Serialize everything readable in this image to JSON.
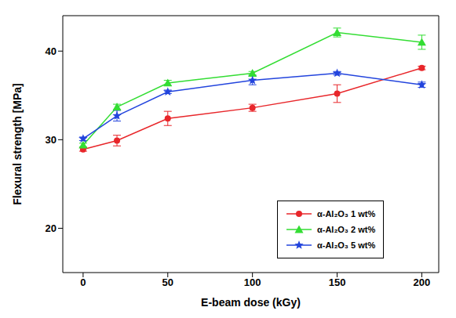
{
  "chart_data": {
    "type": "line",
    "x_label": "E-beam dose (kGy)",
    "y_label": "Flexural strength [MPa]",
    "xlim": [
      -12,
      210
    ],
    "xticks": [
      0,
      50,
      100,
      150,
      200
    ],
    "ylim": [
      15,
      44
    ],
    "yticks": [
      20,
      30,
      40
    ],
    "grid": false,
    "legend": "lower right",
    "x": [
      0,
      20,
      50,
      100,
      150,
      200
    ],
    "series": [
      {
        "name": "α-Al₂O₃ 1 wt%",
        "color": "#e8262a",
        "marker": "circle",
        "values": [
          28.9,
          29.9,
          32.4,
          33.6,
          35.2,
          38.1
        ],
        "error": [
          0.2,
          0.6,
          0.8,
          0.4,
          1.0,
          0.2
        ]
      },
      {
        "name": "α-Al₂O₃ 2 wt%",
        "color": "#33dd33",
        "marker": "triangle",
        "values": [
          29.4,
          33.7,
          36.4,
          37.5,
          42.1,
          41.0
        ],
        "error": [
          0.2,
          0.3,
          0.3,
          0.2,
          0.5,
          0.8
        ]
      },
      {
        "name": "α-Al₂O₃ 5 wt%",
        "color": "#2244dd",
        "marker": "star",
        "values": [
          30.1,
          32.7,
          35.4,
          36.7,
          37.5,
          36.2
        ],
        "error": [
          0.2,
          0.6,
          0.2,
          0.5,
          0.2,
          0.3
        ]
      }
    ]
  }
}
